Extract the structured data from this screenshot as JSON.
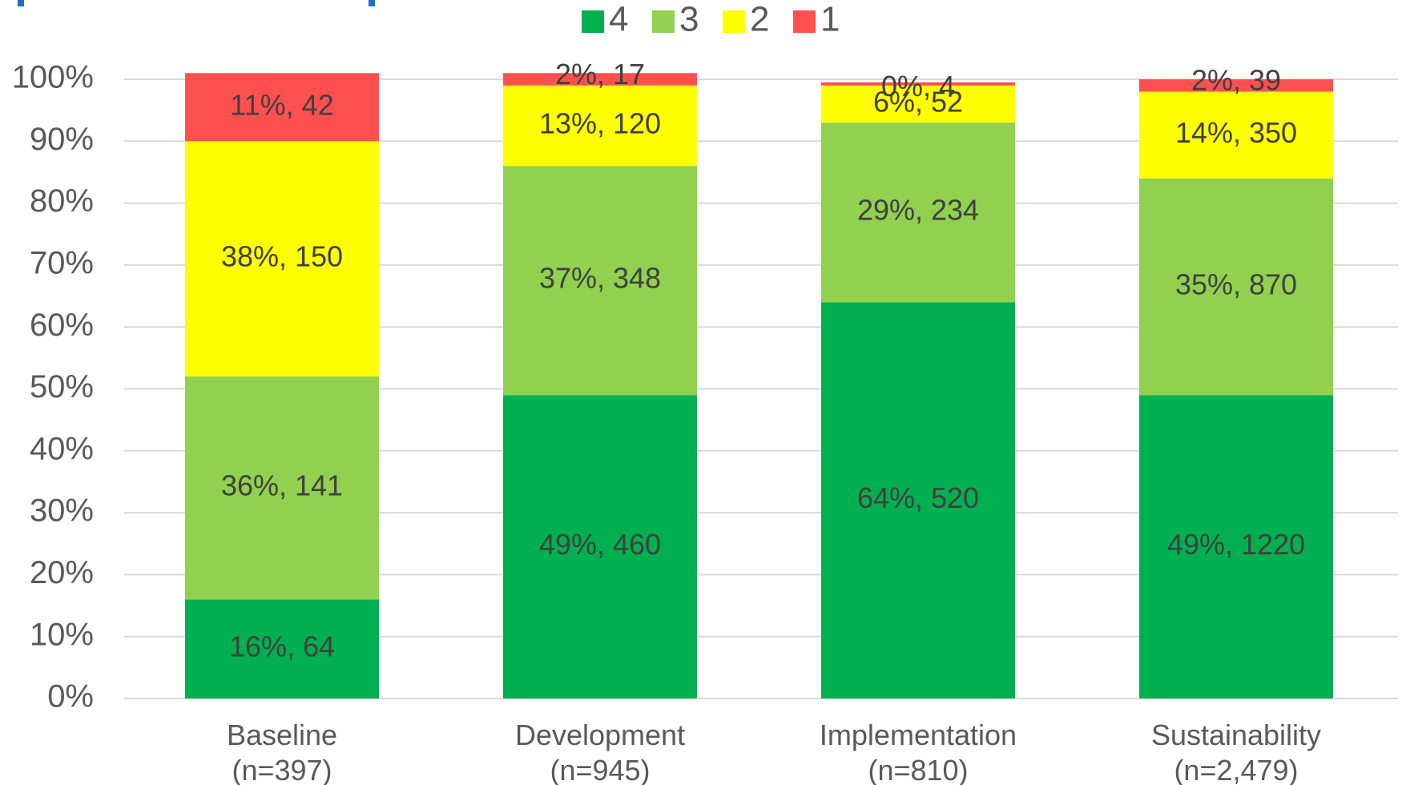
{
  "chart_data": {
    "type": "bar",
    "stacked": true,
    "percent_stacked": true,
    "title": "",
    "xlabel": "",
    "ylabel": "",
    "ylim": [
      0,
      100
    ],
    "y_ticks": [
      "0%",
      "10%",
      "20%",
      "30%",
      "40%",
      "50%",
      "60%",
      "70%",
      "80%",
      "90%",
      "100%"
    ],
    "grid": true,
    "legend_position": "top",
    "categories": [
      [
        "Baseline",
        "(n=397)"
      ],
      [
        "Development",
        "(n=945)"
      ],
      [
        "Implementation",
        "(n=810)"
      ],
      [
        "Sustainability",
        "(n=2,479)"
      ]
    ],
    "series": [
      {
        "name": "4",
        "color": "#00b050",
        "values": [
          16,
          49,
          64,
          49
        ],
        "labels": [
          "16%, 64",
          "49%, 460",
          "64%, 520",
          "49%, 1220"
        ]
      },
      {
        "name": "3",
        "color": "#92d050",
        "values": [
          36,
          37,
          29,
          35
        ],
        "labels": [
          "36%, 141",
          "37%, 348",
          "29%, 234",
          "35%, 870"
        ]
      },
      {
        "name": "2",
        "color": "#ffff00",
        "values": [
          38,
          13,
          6,
          14
        ],
        "labels": [
          "38%, 150",
          "13%, 120",
          "6%, 52",
          "14%, 350"
        ]
      },
      {
        "name": "1",
        "color": "#ff5050",
        "values": [
          11,
          2,
          0,
          2
        ],
        "labels": [
          "11%, 42",
          "2%, 17",
          "0%, 4",
          "2%, 39"
        ]
      }
    ],
    "legend_order": [
      "4",
      "3",
      "2",
      "1"
    ],
    "colors": {
      "grid": "#d9d9d9",
      "axis_text": "#595959",
      "label_text": "#404040"
    }
  }
}
